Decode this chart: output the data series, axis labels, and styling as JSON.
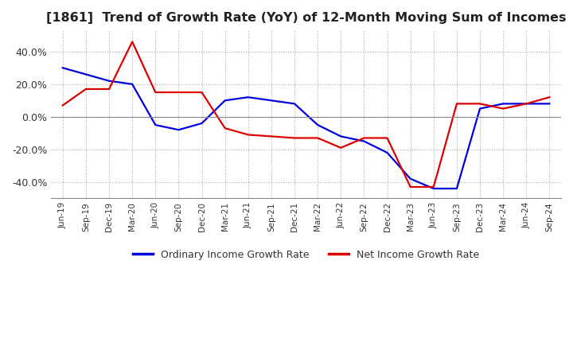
{
  "title": "[1861]  Trend of Growth Rate (YoY) of 12-Month Moving Sum of Incomes",
  "title_fontsize": 11.5,
  "background_color": "#ffffff",
  "grid_color": "#aaaaaa",
  "ylim": [
    -50,
    53
  ],
  "yticks": [
    -40,
    -20,
    0,
    20,
    40
  ],
  "ordinary_income_color": "#0000dd",
  "net_income_color": "#dd0000",
  "ordinary_income_label": "Ordinary Income Growth Rate",
  "net_income_label": "Net Income Growth Rate",
  "x_labels": [
    "Jun-19",
    "Sep-19",
    "Dec-19",
    "Mar-20",
    "Jun-20",
    "Sep-20",
    "Dec-20",
    "Mar-21",
    "Jun-21",
    "Sep-21",
    "Dec-21",
    "Mar-22",
    "Jun-22",
    "Sep-22",
    "Dec-22",
    "Mar-23",
    "Jun-23",
    "Sep-23",
    "Dec-23",
    "Mar-24",
    "Jun-24",
    "Sep-24"
  ],
  "ordinary_income": [
    30.0,
    26.0,
    22.0,
    20.0,
    -5.0,
    -8.0,
    -4.0,
    10.0,
    12.0,
    10.0,
    8.0,
    -5.0,
    -12.0,
    -15.0,
    -22.0,
    -38.0,
    -44.0,
    -44.0,
    5.0,
    8.0,
    8.0,
    8.0
  ],
  "net_income": [
    7.0,
    17.0,
    17.0,
    46.0,
    15.0,
    15.0,
    15.0,
    -7.0,
    -11.0,
    -12.0,
    -13.0,
    -13.0,
    -19.0,
    -13.0,
    -13.0,
    -43.0,
    -43.0,
    8.0,
    8.0,
    5.0,
    8.0,
    12.0
  ]
}
